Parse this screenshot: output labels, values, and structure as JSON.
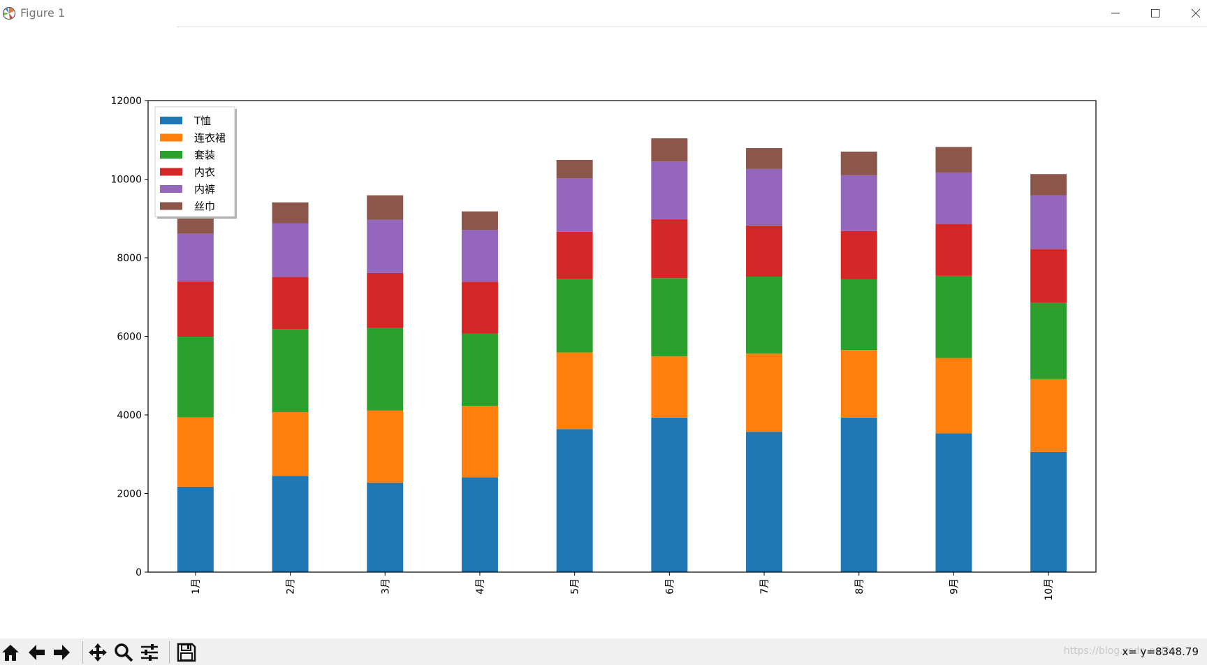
{
  "window": {
    "title": "Figure 1"
  },
  "toolbar": {
    "tools": [
      {
        "name": "home-icon"
      },
      {
        "name": "back-arrow-icon"
      },
      {
        "name": "forward-arrow-icon"
      },
      {
        "name": "pan-icon"
      },
      {
        "name": "zoom-icon"
      },
      {
        "name": "configure-subplots-icon"
      },
      {
        "name": "save-icon"
      }
    ],
    "coords": "x= y=8348.79",
    "watermark": "https://blog.csdn.net/w"
  },
  "colors": {
    "T恤": "#1f77b4",
    "连衣裙": "#ff7f0e",
    "套装": "#2ca02c",
    "内衣": "#d62728",
    "内裤": "#9467bd",
    "丝巾": "#8c564b"
  },
  "chart_data": {
    "type": "bar",
    "stacked": true,
    "categories": [
      "1月",
      "2月",
      "3月",
      "4月",
      "5月",
      "6月",
      "7月",
      "8月",
      "9月",
      "10月"
    ],
    "series": [
      {
        "name": "T恤",
        "values": [
          2170,
          2450,
          2280,
          2410,
          3640,
          3930,
          3570,
          3930,
          3530,
          3060
        ]
      },
      {
        "name": "连衣裙",
        "values": [
          1770,
          1620,
          1830,
          1820,
          1950,
          1560,
          1990,
          1720,
          1920,
          1850
        ]
      },
      {
        "name": "套装",
        "values": [
          2050,
          2110,
          2100,
          1840,
          1870,
          1990,
          1960,
          1800,
          2090,
          1940
        ]
      },
      {
        "name": "内衣",
        "values": [
          1410,
          1330,
          1400,
          1320,
          1200,
          1500,
          1300,
          1230,
          1320,
          1370
        ]
      },
      {
        "name": "内裤",
        "values": [
          1210,
          1370,
          1360,
          1320,
          1360,
          1470,
          1440,
          1420,
          1310,
          1370
        ]
      },
      {
        "name": "丝巾",
        "values": [
          440,
          530,
          620,
          470,
          470,
          590,
          530,
          600,
          650,
          540
        ]
      }
    ],
    "ylim": [
      0,
      12000
    ],
    "yticks": [
      0,
      2000,
      4000,
      6000,
      8000,
      10000,
      12000
    ],
    "xtick_rotation": 90,
    "legend": "top-left",
    "grid": false,
    "title": "",
    "xlabel": "",
    "ylabel": ""
  }
}
